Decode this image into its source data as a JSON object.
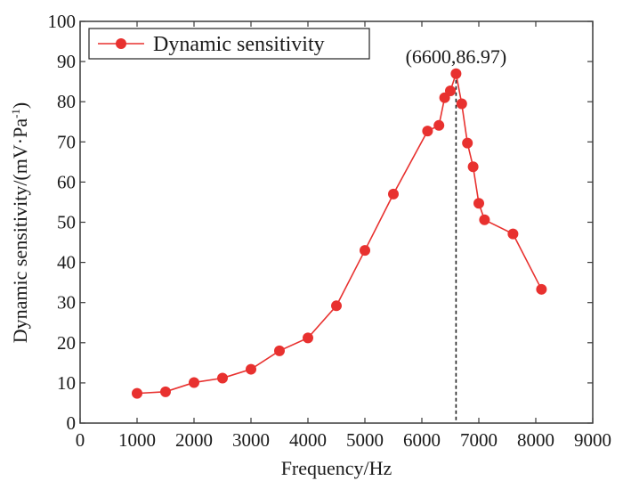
{
  "chart_data": {
    "type": "line",
    "title": "",
    "xlabel": "Frequency/Hz",
    "ylabel": "Dynamic sensitivity/(mV·Pa",
    "ylabel_superscript": "-1",
    "ylabel_close": ")",
    "xlim": [
      0,
      9000
    ],
    "ylim": [
      0,
      100
    ],
    "x_ticks": [
      "0",
      "1000",
      "2000",
      "3000",
      "4000",
      "5000",
      "6000",
      "7000",
      "8000",
      "9000"
    ],
    "y_ticks": [
      "0",
      "10",
      "20",
      "30",
      "40",
      "50",
      "60",
      "70",
      "80",
      "90",
      "100"
    ],
    "grid": false,
    "legend": {
      "position": "top-left",
      "entries": [
        "Dynamic sensitivity"
      ]
    },
    "series": [
      {
        "name": "Dynamic sensitivity",
        "color": "#e8312f",
        "marker": "circle",
        "x": [
          1000,
          1500,
          2000,
          2500,
          3000,
          3500,
          4000,
          4500,
          5000,
          5500,
          6100,
          6300,
          6400,
          6500,
          6600,
          6700,
          6800,
          6900,
          7000,
          7100,
          7600,
          8100
        ],
        "y": [
          7.4,
          7.8,
          10.1,
          11.2,
          13.4,
          18.0,
          21.2,
          29.2,
          43.0,
          57.0,
          72.7,
          74.1,
          81.0,
          82.7,
          86.97,
          79.5,
          69.7,
          63.8,
          54.7,
          50.6,
          47.1,
          33.3
        ]
      }
    ],
    "annotations": [
      {
        "text": "(6600,86.97)",
        "x": 6600,
        "y": 86.97,
        "vline_dashed": true
      }
    ]
  }
}
